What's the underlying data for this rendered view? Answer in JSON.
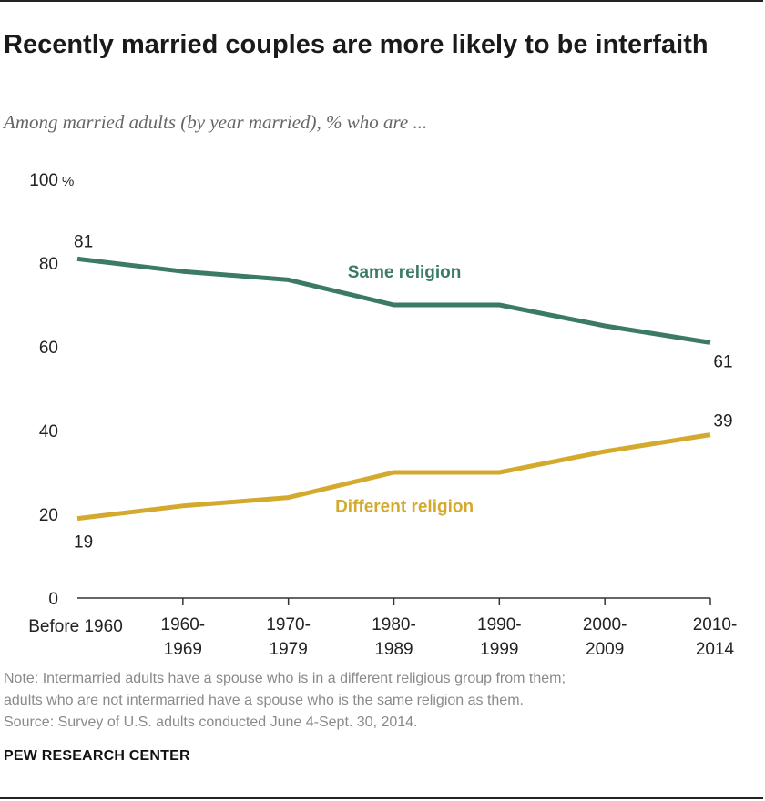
{
  "title": "Recently married couples are more likely to be interfaith",
  "subtitle": "Among married adults (by year married), % who are ...",
  "chart_data": {
    "type": "line",
    "categories": [
      [
        "Before 1960"
      ],
      [
        "1960-",
        "1969"
      ],
      [
        "1970-",
        "1979"
      ],
      [
        "1980-",
        "1989"
      ],
      [
        "1990-",
        "1999"
      ],
      [
        "2000-",
        "2009"
      ],
      [
        "2010-",
        "2014"
      ]
    ],
    "ylim": [
      0,
      100
    ],
    "yticks": [
      "0",
      "20",
      "40",
      "60",
      "80",
      "100"
    ],
    "y_unit": "%",
    "series": [
      {
        "name": "Same religion",
        "color": "#3b7a66",
        "values": [
          81,
          78,
          76,
          70,
          70,
          65,
          61
        ],
        "labels": [
          {
            "index": 0,
            "text": "81"
          },
          {
            "index": 6,
            "text": "61"
          }
        ]
      },
      {
        "name": "Different religion",
        "color": "#d4aa2e",
        "values": [
          19,
          22,
          24,
          30,
          30,
          35,
          39
        ],
        "labels": [
          {
            "index": 0,
            "text": "19"
          },
          {
            "index": 6,
            "text": "39"
          }
        ]
      }
    ]
  },
  "note": {
    "line1": "Note: Intermarried adults have a spouse who is in a different religious group from them;",
    "line2": "adults who are not intermarried have a spouse who is the same religion as them.",
    "source": "Source: Survey of U.S. adults conducted June 4-Sept. 30, 2014."
  },
  "brand": "PEW RESEARCH CENTER"
}
